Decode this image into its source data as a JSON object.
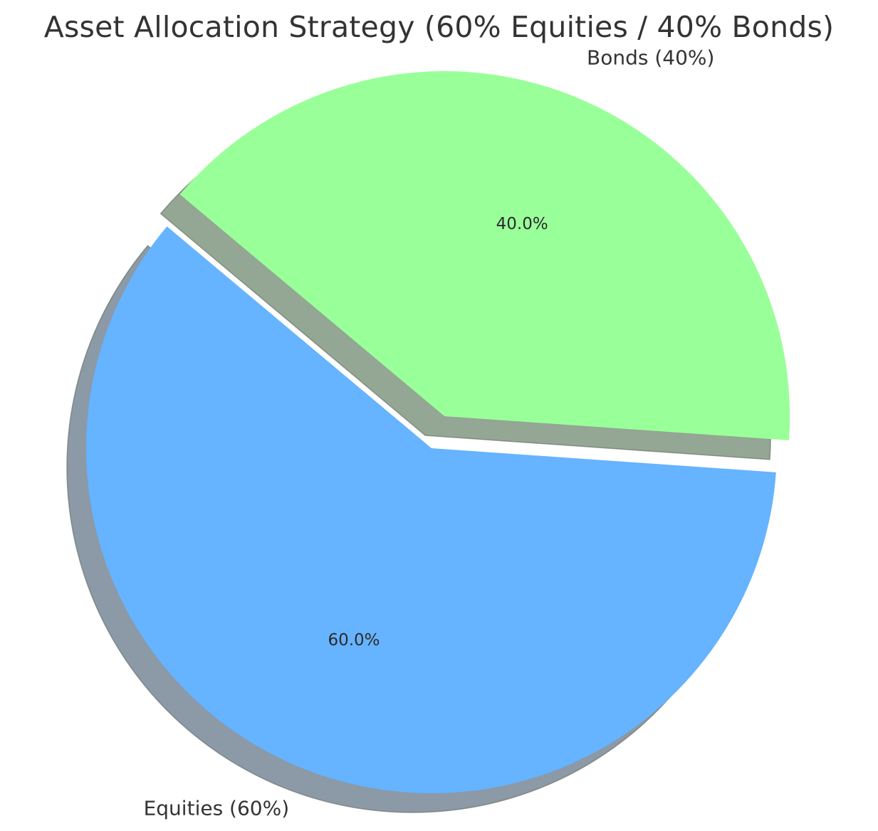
{
  "chart_data": {
    "type": "pie",
    "title": "Asset Allocation Strategy (60% Equities / 40% Bonds)",
    "categories": [
      "Equities (60%)",
      "Bonds (40%)"
    ],
    "values": [
      60,
      40
    ],
    "percent_labels": [
      "60.0%",
      "40.0%"
    ],
    "colors": [
      "#66b3ff",
      "#99ff99"
    ],
    "shadow_colors": [
      "#8c99a6",
      "#94a694"
    ],
    "exploded": [
      false,
      true
    ],
    "shadow": true,
    "start_angle_deg": 140,
    "legend": "none"
  }
}
